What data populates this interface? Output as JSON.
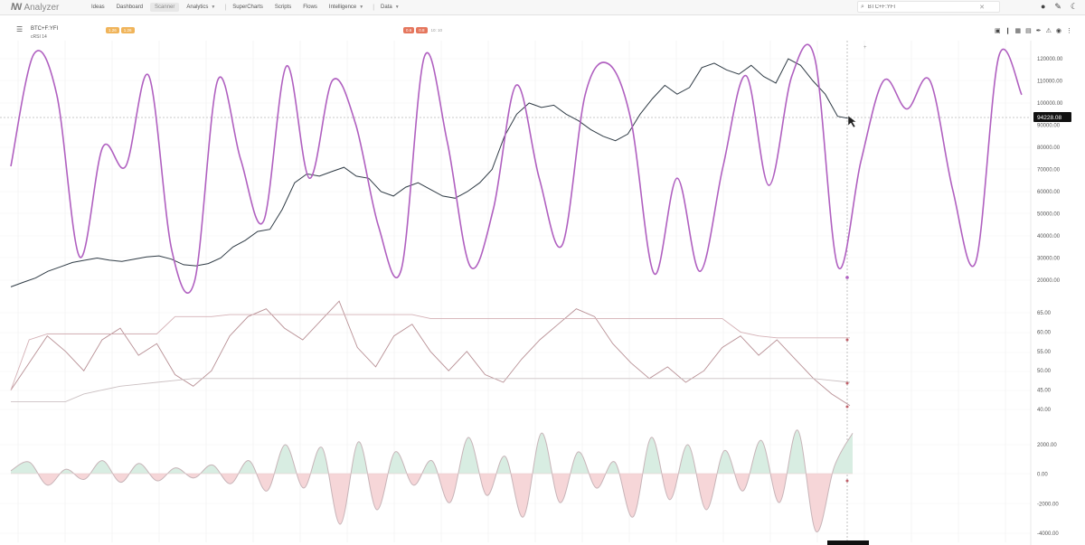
{
  "app": {
    "logo_mark": "/W",
    "name": "Analyzer"
  },
  "nav": [
    {
      "label": "Ideas",
      "active": false,
      "dropdown": false,
      "sep_before": false
    },
    {
      "label": "Dashboard",
      "active": false,
      "dropdown": false,
      "sep_before": false
    },
    {
      "label": "Scanner",
      "active": true,
      "dropdown": false,
      "sep_before": false
    },
    {
      "label": "Analytics",
      "active": false,
      "dropdown": true,
      "sep_before": false
    },
    {
      "label": "SuperCharts",
      "active": false,
      "dropdown": false,
      "sep_before": true
    },
    {
      "label": "Scripts",
      "active": false,
      "dropdown": false,
      "sep_before": false
    },
    {
      "label": "Flows",
      "active": false,
      "dropdown": false,
      "sep_before": false
    },
    {
      "label": "Intelligence",
      "active": false,
      "dropdown": true,
      "sep_before": false
    },
    {
      "label": "Data",
      "active": false,
      "dropdown": true,
      "sep_before": true
    }
  ],
  "search": {
    "value": "BTC+F:YFI",
    "icon": "search-icon"
  },
  "top_icons": [
    "user-icon",
    "share-icon",
    "theme-icon"
  ],
  "chart": {
    "symbol": "BTC+F:YFI",
    "indicator_label": "cRSI 14",
    "badges_a": [
      "1.26",
      "1.26"
    ],
    "badges_b": [
      "0.6",
      "0.8"
    ],
    "badges_note": "10: 10",
    "toolbar_icons": [
      "save-icon",
      "pin-icon",
      "grid-icon",
      "layout-icon",
      "draw-icon",
      "alert-icon",
      "eye-icon",
      "more-icon"
    ],
    "last_price": "94228.08",
    "cursor_x_label": ""
  },
  "chart_data": [
    {
      "type": "line",
      "panel": "price",
      "y_ticks": [
        "120000.00",
        "110000.00",
        "100000.00",
        "90000.00",
        "80000.00",
        "70000.00",
        "60000.00",
        "50000.00",
        "40000.00",
        "30000.00",
        "20000.00"
      ],
      "ylim": [
        20000,
        125000
      ],
      "series": [
        {
          "color": "#2f3b45",
          "values": [
            17000,
            19000,
            21000,
            24000,
            26000,
            28000,
            29000,
            30000,
            29000,
            28500,
            29500,
            30500,
            31000,
            29500,
            27000,
            26500,
            27500,
            30000,
            35000,
            38000,
            42000,
            43000,
            52000,
            64000,
            68000,
            67000,
            69000,
            71000,
            67000,
            66000,
            60000,
            58000,
            62000,
            64000,
            61000,
            58000,
            57000,
            60000,
            64000,
            70000,
            85000,
            95000,
            100000,
            98000,
            99000,
            95000,
            92000,
            88000,
            85000,
            83000,
            86000,
            95000,
            102000,
            108000,
            104000,
            107000,
            116000,
            118000,
            115000,
            113000,
            117000,
            112000,
            109000,
            120000,
            117000,
            110000,
            104000,
            94000,
            93000
          ]
        }
      ]
    },
    {
      "type": "line",
      "panel": "cycle",
      "series": [
        {
          "color": "#b060c0",
          "values": [
            0.5,
            0.97,
            0.8,
            0.12,
            0.58,
            0.5,
            0.88,
            0.15,
            0.02,
            0.86,
            0.53,
            0.27,
            0.92,
            0.45,
            0.86,
            0.68,
            0.25,
            0.07,
            0.96,
            0.6,
            0.08,
            0.32,
            0.84,
            0.45,
            0.17,
            0.8,
            0.93,
            0.69,
            0.05,
            0.45,
            0.06,
            0.5,
            0.88,
            0.42,
            0.88,
            0.95,
            0.08,
            0.52,
            0.86,
            0.74,
            0.86,
            0.4,
            0.1,
            0.96,
            0.8
          ]
        }
      ]
    },
    {
      "type": "line",
      "panel": "rsi",
      "y_ticks": [
        "65.00",
        "60.00",
        "55.00",
        "50.00",
        "45.00",
        "40.00"
      ],
      "ylim": [
        38,
        70
      ],
      "series": [
        {
          "color": "#b89095",
          "values": [
            45,
            52,
            59,
            55,
            50,
            58,
            61,
            54,
            57,
            49,
            46,
            50,
            59,
            64,
            66,
            61,
            58,
            63,
            68,
            56,
            51,
            59,
            62,
            55,
            50,
            55,
            49,
            47,
            53,
            58,
            62,
            66,
            64,
            57,
            52,
            48,
            51,
            47,
            50,
            56,
            59,
            54,
            58,
            53,
            48,
            44,
            41
          ]
        },
        {
          "color": "#d4b0b5",
          "values": [
            45,
            58,
            59.5,
            59.5,
            59.5,
            59.5,
            59.5,
            59.5,
            59.5,
            64,
            64,
            64,
            64.5,
            64.5,
            64.5,
            64.5,
            64.5,
            64.5,
            64.5,
            64.5,
            64.5,
            64.5,
            64.5,
            63.5,
            63.5,
            63.5,
            63.5,
            63.5,
            63.5,
            63.5,
            63.5,
            63.5,
            63.5,
            63.5,
            63.5,
            63.5,
            63.5,
            63.5,
            63.5,
            63.5,
            60,
            59,
            58.5,
            58.5,
            58.5,
            58.5,
            58.5
          ]
        },
        {
          "color": "#cbc0c2",
          "values": [
            42,
            42,
            42,
            42,
            44,
            45,
            46,
            46.5,
            47,
            47.5,
            48,
            48,
            48,
            48,
            48,
            48,
            48,
            48,
            48,
            48,
            48,
            48,
            48,
            48,
            48,
            48,
            48,
            48,
            48,
            48,
            48,
            48,
            48,
            48,
            48,
            48,
            48,
            48,
            48,
            48,
            48,
            48,
            48,
            48,
            48,
            47.5,
            47
          ]
        }
      ]
    },
    {
      "type": "area",
      "panel": "oscillator",
      "y_ticks": [
        "2000.00",
        "0.00",
        "-2000.00",
        "-4000.00"
      ],
      "ylim": [
        -4200,
        3200
      ],
      "series": [
        {
          "values": [
            200,
            800,
            -800,
            300,
            -400,
            900,
            -600,
            700,
            -500,
            400,
            -300,
            600,
            -700,
            900,
            -1200,
            2000,
            -1000,
            1800,
            -3500,
            2200,
            -2500,
            1500,
            -800,
            900,
            -2000,
            2500,
            -1500,
            1200,
            -3000,
            2800,
            -2000,
            1500,
            -1000,
            800,
            -3000,
            2500,
            -1800,
            2000,
            -2500,
            1600,
            -1200,
            2300,
            -2000,
            3000,
            -4000,
            500,
            2800
          ]
        }
      ]
    }
  ]
}
